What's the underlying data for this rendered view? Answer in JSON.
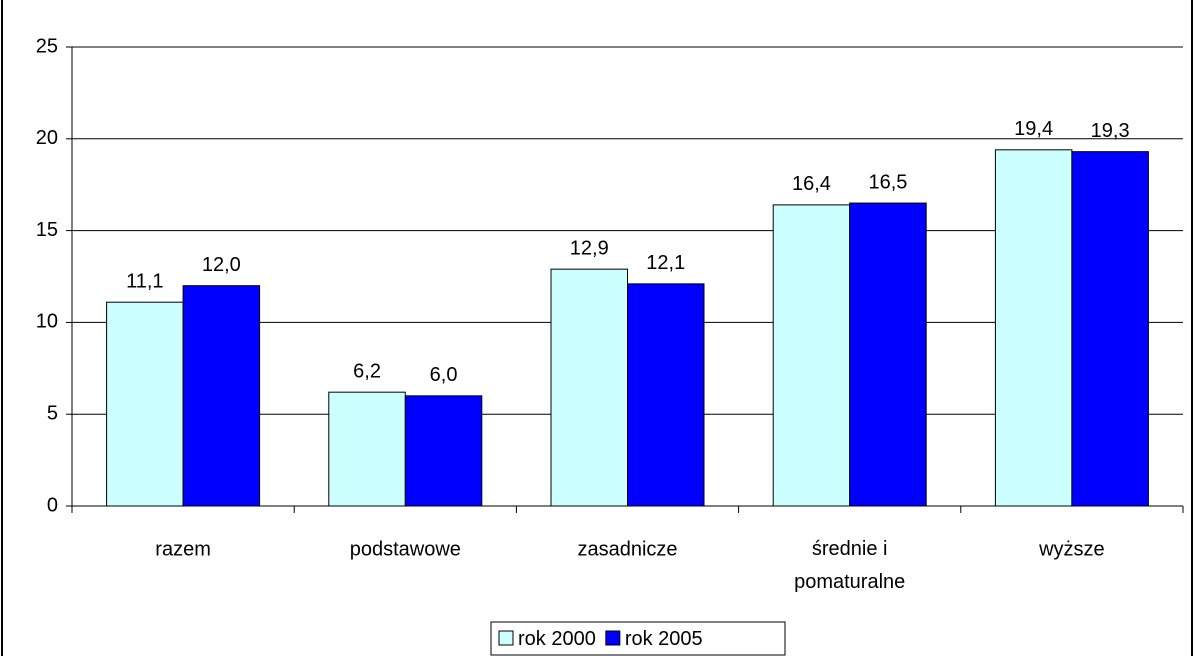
{
  "chart_data": {
    "type": "bar",
    "categories": [
      "razem",
      "podstawowe",
      "zasadnicze",
      "średnie i pomaturalne",
      "wyższe"
    ],
    "series": [
      {
        "name": "rok 2000",
        "color": "#ccffff",
        "values": [
          11.1,
          6.2,
          12.9,
          16.4,
          19.4
        ],
        "value_labels": [
          "11,1",
          "6,2",
          "12,9",
          "16,4",
          "19,4"
        ]
      },
      {
        "name": "rok 2005",
        "color": "#0000ff",
        "values": [
          12.0,
          6.0,
          12.1,
          16.5,
          19.3
        ],
        "value_labels": [
          "12,0",
          "6,0",
          "12,1",
          "16,5",
          "19,3"
        ]
      }
    ],
    "ylim": [
      0,
      25
    ],
    "yticks": [
      0,
      5,
      10,
      15,
      20,
      25
    ],
    "grid": true,
    "legend": "bottom"
  }
}
